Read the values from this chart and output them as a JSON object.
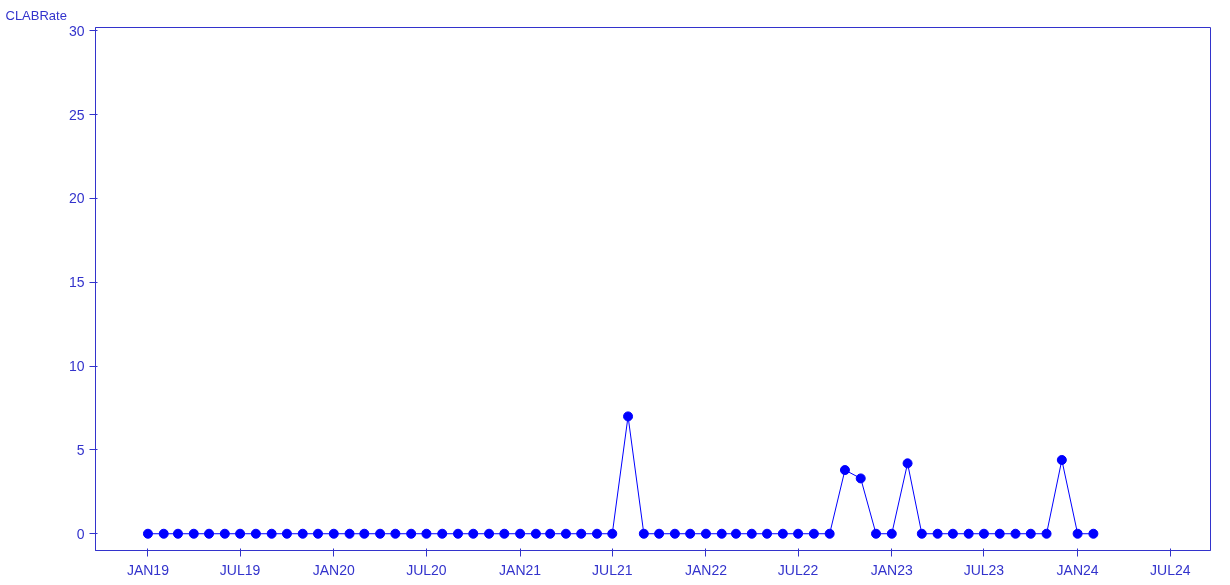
{
  "chart_data": {
    "type": "line",
    "ylabel": "CLABRate",
    "x": [
      "2019-01",
      "2019-02",
      "2019-03",
      "2019-04",
      "2019-05",
      "2019-06",
      "2019-07",
      "2019-08",
      "2019-09",
      "2019-10",
      "2019-11",
      "2019-12",
      "2020-01",
      "2020-02",
      "2020-03",
      "2020-04",
      "2020-05",
      "2020-06",
      "2020-07",
      "2020-08",
      "2020-09",
      "2020-10",
      "2020-11",
      "2020-12",
      "2021-01",
      "2021-02",
      "2021-03",
      "2021-04",
      "2021-05",
      "2021-06",
      "2021-07",
      "2021-08",
      "2021-09",
      "2021-10",
      "2021-11",
      "2021-12",
      "2022-01",
      "2022-02",
      "2022-03",
      "2022-04",
      "2022-05",
      "2022-06",
      "2022-07",
      "2022-08",
      "2022-09",
      "2022-10",
      "2022-11",
      "2022-12",
      "2023-01",
      "2023-02",
      "2023-03",
      "2023-04",
      "2023-05",
      "2023-06",
      "2023-07",
      "2023-08",
      "2023-09",
      "2023-10",
      "2023-11",
      "2023-12",
      "2024-01",
      "2024-02"
    ],
    "series": [
      {
        "color": "#0000ff",
        "values": [
          0,
          0,
          0,
          0,
          0,
          0,
          0,
          0,
          0,
          0,
          0,
          0,
          0,
          0,
          0,
          0,
          0,
          0,
          0,
          0,
          0,
          0,
          0,
          0,
          0,
          0,
          0,
          0,
          0,
          0,
          0,
          7,
          0,
          0,
          0,
          0,
          0,
          0,
          0,
          0,
          0,
          0,
          0,
          0,
          0,
          3.8,
          3.3,
          0,
          0,
          4.2,
          0,
          0,
          0,
          0,
          0,
          0,
          0,
          0,
          0,
          4.4,
          0,
          0
        ]
      }
    ],
    "xlim": [
      "2018-09-20",
      "2024-09-18"
    ],
    "xticks": [
      {
        "value": "2019-01",
        "label": "JAN19"
      },
      {
        "value": "2019-07",
        "label": "JUL19"
      },
      {
        "value": "2020-01",
        "label": "JAN20"
      },
      {
        "value": "2020-07",
        "label": "JUL20"
      },
      {
        "value": "2021-01",
        "label": "JAN21"
      },
      {
        "value": "2021-07",
        "label": "JUL21"
      },
      {
        "value": "2022-01",
        "label": "JAN22"
      },
      {
        "value": "2022-07",
        "label": "JUL22"
      },
      {
        "value": "2023-01",
        "label": "JAN23"
      },
      {
        "value": "2023-07",
        "label": "JUL23"
      },
      {
        "value": "2024-01",
        "label": "JAN24"
      },
      {
        "value": "2024-07",
        "label": "JUL24"
      }
    ],
    "ylim": [
      -1,
      30.2
    ],
    "yticks": [
      0,
      5,
      10,
      15,
      20,
      25,
      30
    ],
    "grid": false,
    "marker": "circle",
    "line_style": "solid"
  }
}
